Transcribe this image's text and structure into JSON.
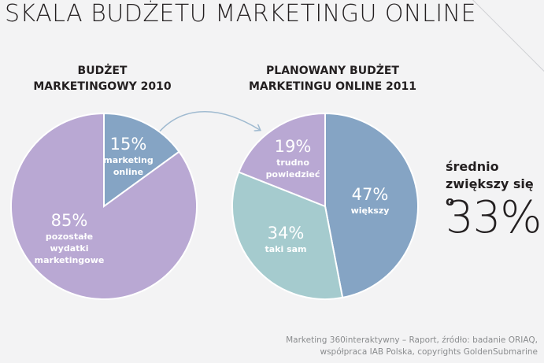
{
  "title": "SKALA BUDŻETU MARKETINGU ONLINE",
  "chart_data": [
    {
      "type": "pie",
      "title": [
        "BUDŻET",
        "MARKETINGOWY 2010"
      ],
      "slices": [
        {
          "value": 15,
          "label": "15%",
          "sublabel": [
            "marketing",
            "online"
          ],
          "color": "#85a4c4"
        },
        {
          "value": 85,
          "label": "85%",
          "sublabel": [
            "pozostałe",
            "wydatki",
            "marketingowe"
          ],
          "color": "#b9a8d3"
        }
      ]
    },
    {
      "type": "pie",
      "title": [
        "PLANOWANY BUDŻET",
        "MARKETINGU ONLINE 2011"
      ],
      "slices": [
        {
          "value": 47,
          "label": "47%",
          "sublabel": [
            "większy"
          ],
          "color": "#85a4c4"
        },
        {
          "value": 34,
          "label": "34%",
          "sublabel": [
            "taki sam"
          ],
          "color": "#a5cbce"
        },
        {
          "value": 19,
          "label": "19%",
          "sublabel": [
            "trudno",
            "powiedzieć"
          ],
          "color": "#b9a8d3"
        }
      ]
    }
  ],
  "summary": {
    "label": "średnio zwiększy się o",
    "value": "33%"
  },
  "source": {
    "line1": "Marketing 360interaktywny – Raport, źródło: badanie ORIAQ,",
    "line2": "współpraca IAB Polska, copyrights GoldenSubmarine"
  },
  "colors": {
    "arrow": "#9fbad0",
    "label_text": "#ffffff",
    "background": "#f3f3f4"
  }
}
